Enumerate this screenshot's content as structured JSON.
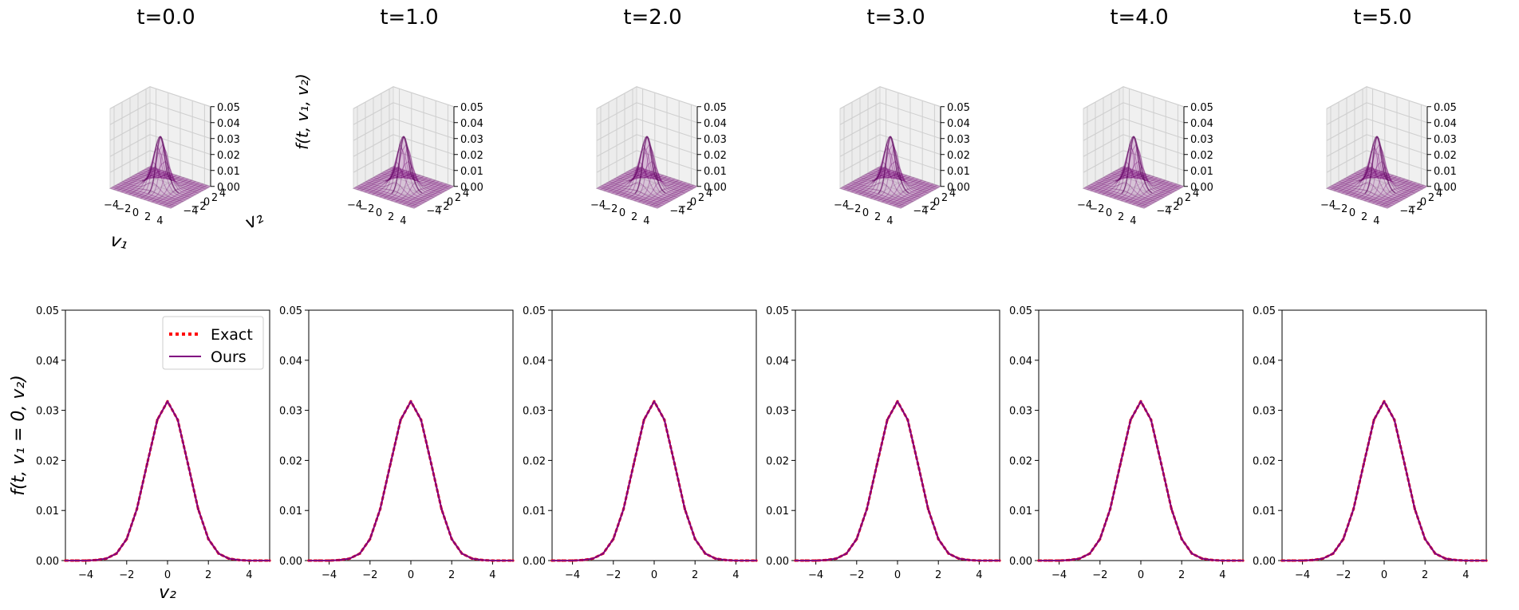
{
  "chart_data": {
    "type": "figure-grid",
    "panels_3d": [
      {
        "title": "t=0.0",
        "type": "surface3d"
      },
      {
        "title": "t=1.0",
        "type": "surface3d"
      },
      {
        "title": "t=2.0",
        "type": "surface3d"
      },
      {
        "title": "t=3.0",
        "type": "surface3d"
      },
      {
        "title": "t=4.0",
        "type": "surface3d"
      },
      {
        "title": "t=5.0",
        "type": "surface3d"
      }
    ],
    "surface": {
      "xlabel": "v₁",
      "ylabel": "v₂",
      "zlabel": "f(t, v₁, v₂)",
      "xlim": [
        -5,
        5
      ],
      "ylim": [
        -5,
        5
      ],
      "zlim": [
        0,
        0.05
      ],
      "xticks": [
        "−4",
        "−2",
        "0",
        "2",
        "4"
      ],
      "yticks": [
        "−4",
        "−2",
        "0",
        "2",
        "4"
      ],
      "zticks": [
        "0.00",
        "0.01",
        "0.02",
        "0.03",
        "0.04",
        "0.05"
      ],
      "peak": 0.0318,
      "sigma": 1.0,
      "color": "#800080"
    },
    "line_panels": {
      "type": "line",
      "xlabel": "v₂",
      "ylabel": "f(t, v₁ = 0, v₂)",
      "xlim": [
        -5,
        5
      ],
      "ylim": [
        0,
        0.05
      ],
      "xticks": [
        "−4",
        "−2",
        "0",
        "2",
        "4"
      ],
      "yticks": [
        "0.00",
        "0.01",
        "0.02",
        "0.03",
        "0.04",
        "0.05"
      ],
      "legend": {
        "position": "top-right",
        "entries": [
          "Exact",
          "Ours"
        ]
      },
      "x": [
        -5,
        -4.5,
        -4,
        -3.5,
        -3,
        -2.5,
        -2,
        -1.5,
        -1,
        -0.5,
        0,
        0.5,
        1,
        1.5,
        2,
        2.5,
        3,
        3.5,
        4,
        4.5,
        5
      ],
      "series": [
        {
          "name": "Exact",
          "style": "dotted",
          "color": "#ff0000",
          "values": [
            0.0,
            0.0,
            0.0,
            0.0001,
            0.0004,
            0.0014,
            0.0043,
            0.0103,
            0.0193,
            0.0281,
            0.0318,
            0.0281,
            0.0193,
            0.0103,
            0.0043,
            0.0014,
            0.0004,
            0.0001,
            0.0,
            0.0,
            0.0
          ]
        },
        {
          "name": "Ours",
          "style": "solid",
          "color": "#800080",
          "values": [
            0.0,
            0.0,
            0.0,
            0.0001,
            0.0004,
            0.0014,
            0.0043,
            0.0103,
            0.0193,
            0.0281,
            0.0318,
            0.0281,
            0.0193,
            0.0103,
            0.0043,
            0.0014,
            0.0004,
            0.0001,
            0.0,
            0.0,
            0.0
          ]
        }
      ]
    }
  }
}
